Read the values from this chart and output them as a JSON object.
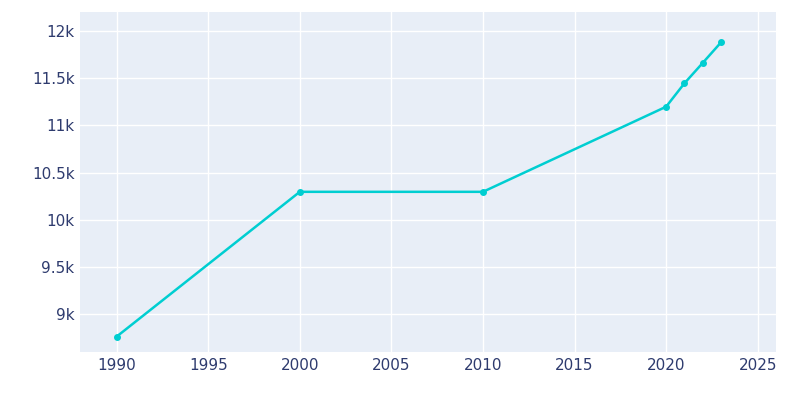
{
  "years": [
    1990,
    2000,
    2010,
    2020,
    2021,
    2022,
    2023
  ],
  "population": [
    8763,
    10296,
    10296,
    11197,
    11445,
    11661,
    11879
  ],
  "line_color": "#00CED1",
  "marker_color": "#00CED1",
  "bg_color": "#FFFFFF",
  "plot_bg_color": "#E8EEF7",
  "grid_color": "#FFFFFF",
  "tick_color": "#2E3B6E",
  "xlim": [
    1988,
    2026
  ],
  "ylim": [
    8600,
    12200
  ],
  "xticks": [
    1990,
    1995,
    2000,
    2005,
    2010,
    2015,
    2020,
    2025
  ],
  "yticks": [
    9000,
    9500,
    10000,
    10500,
    11000,
    11500,
    12000
  ],
  "ytick_labels": [
    "9k",
    "9.5k",
    "10k",
    "10.5k",
    "11k",
    "11.5k",
    "12k"
  ],
  "line_width": 1.8,
  "marker_size": 4,
  "tick_label_fontsize": 11,
  "tick_label_color": "#2E3B6E"
}
